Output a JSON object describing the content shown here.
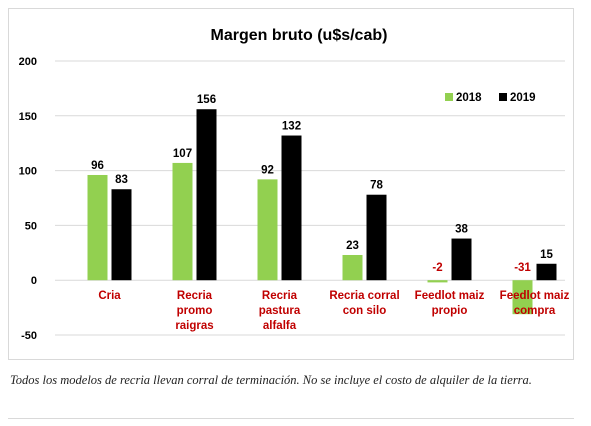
{
  "chart_data": {
    "type": "bar",
    "title": "Margen bruto (u$s/cab)",
    "categories": [
      [
        "Cria"
      ],
      [
        "Recria",
        "promo",
        "raigras"
      ],
      [
        "Recria",
        "pastura",
        "alfalfa"
      ],
      [
        "Recria corral",
        "con silo"
      ],
      [
        "Feedlot maiz",
        "propio"
      ],
      [
        "Feedlot maiz",
        "compra"
      ]
    ],
    "series": [
      {
        "name": "2018",
        "values": [
          96,
          107,
          92,
          23,
          -2,
          -31
        ]
      },
      {
        "name": "2019",
        "values": [
          83,
          156,
          132,
          78,
          38,
          15
        ]
      }
    ],
    "ylim": [
      -50,
      200
    ],
    "yticks": [
      -50,
      0,
      50,
      100,
      150,
      200
    ],
    "xlabel": "",
    "ylabel": "",
    "grid": true,
    "legend": "top-right",
    "colors": {
      "series_2018": "#92d050",
      "series_2019": "#000000",
      "category_label": "#c00000",
      "negative_label": "#c00000",
      "grid": "#d9d9d9",
      "text": "#000000"
    }
  },
  "caption": "Todos los modelos de recria llevan corral de terminación. No se incluye el costo de alquiler de la tierra."
}
